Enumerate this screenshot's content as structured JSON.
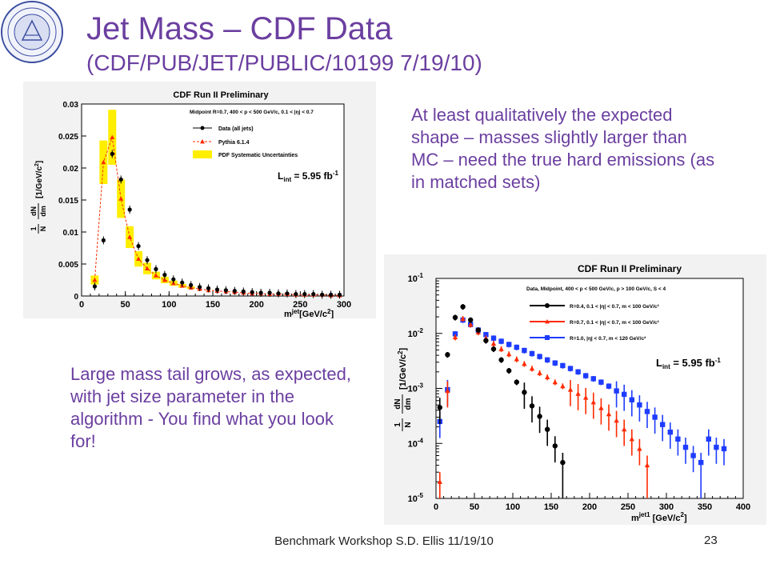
{
  "slide": {
    "title": "Jet Mass – CDF Data",
    "subtitle": "(CDF/PUB/JET/PUBLIC/10199  7/19/10)",
    "note_top": "At least qualitatively the expected shape – masses slightly larger than MC – need the true hard emissions (as in matched sets)",
    "note_bottom": "Large mass tail grows, as expected, with jet size parameter in the algorithm - You find what you look for!",
    "footer": "Benchmark Workshop   S.D. Ellis 11/19/10",
    "page_number": "23"
  },
  "colors": {
    "title": "#6b3fa0",
    "data_black": "#000000",
    "pythia_red": "#ff2a00",
    "systematic_yellow": "#ffee00",
    "r1_blue": "#1e3cff"
  },
  "chart_data": [
    {
      "type": "scatter",
      "title": "CDF Run II Preliminary",
      "xlabel": "m",
      "xlabel_sup": "jet",
      "xlabel_unit": "[GeV/c",
      "xlabel_unit_sup": "2",
      "xlabel_unit_end": "]",
      "ylabel": "[1/GeV/c",
      "ylabel_sup": "2",
      "ylabel_end": "]",
      "xlim": [
        0,
        300
      ],
      "ylim": [
        0,
        0.03
      ],
      "xticks": [
        0,
        50,
        100,
        150,
        200,
        250,
        300
      ],
      "yticks": [
        0,
        0.005,
        0.01,
        0.015,
        0.02,
        0.025,
        0.03
      ],
      "ytick_labels": [
        "0",
        "0.005",
        "0.01",
        "0.015",
        "0.02",
        "0.025",
        "0.03"
      ],
      "legend_header": "Midpoint R=0.7, 400 < p",
      "legend_header_tail": " < 500 GeV/c, 0.1 < |η",
      "legend_header_tail2": "| < 0.7",
      "legend_position": "top-right",
      "luminosity": "L",
      "luminosity_sub": "int",
      "luminosity_value": " = 5.95 fb",
      "luminosity_sup": "-1",
      "series": [
        {
          "name": "Data (all jets)",
          "style": "black-circles",
          "x": [
            15,
            25,
            35,
            45,
            55,
            65,
            75,
            85,
            95,
            105,
            115,
            125,
            135,
            145,
            155,
            165,
            175,
            185,
            195,
            205,
            215,
            225,
            235,
            245,
            255,
            265,
            275,
            285,
            295
          ],
          "y": [
            0.0015,
            0.0087,
            0.0222,
            0.0182,
            0.0135,
            0.0078,
            0.0056,
            0.0042,
            0.0033,
            0.0026,
            0.0021,
            0.0017,
            0.0014,
            0.0012,
            0.001,
            0.0009,
            0.0008,
            0.0007,
            0.0006,
            0.0005,
            0.0005,
            0.0004,
            0.0004,
            0.0003,
            0.0003,
            0.0003,
            0.0002,
            0.0002,
            0.0002
          ]
        },
        {
          "name": "Pythia 6.1.4",
          "style": "red-triangles-dashed",
          "x": [
            15,
            25,
            35,
            45,
            55,
            65,
            75,
            85,
            95,
            105,
            115,
            125,
            135,
            145,
            155,
            165,
            175,
            185,
            195,
            205,
            215,
            225,
            235,
            245,
            255,
            265,
            275,
            285,
            295
          ],
          "y": [
            0.0025,
            0.0209,
            0.0248,
            0.0152,
            0.0092,
            0.0058,
            0.0043,
            0.0032,
            0.0025,
            0.002,
            0.0016,
            0.0013,
            0.0011,
            0.0009,
            0.0008,
            0.0007,
            0.0006,
            0.0005,
            0.0004,
            0.0004,
            0.0003,
            0.0003,
            0.0003,
            0.0002,
            0.0002,
            0.0002,
            0.0002,
            0.0001,
            0.0001
          ]
        },
        {
          "name": "PDF Systematic Uncertainties",
          "style": "yellow-bands",
          "x": [
            15,
            25,
            35,
            45,
            55,
            65,
            75,
            85,
            95,
            105,
            115,
            125
          ],
          "low": [
            0.0018,
            0.0175,
            0.0205,
            0.0122,
            0.0075,
            0.0046,
            0.0034,
            0.0026,
            0.002,
            0.0016,
            0.0013,
            0.0011
          ],
          "high": [
            0.0032,
            0.0243,
            0.0291,
            0.0182,
            0.0109,
            0.007,
            0.0052,
            0.0038,
            0.003,
            0.0024,
            0.0019,
            0.0015
          ]
        }
      ]
    },
    {
      "type": "scatter",
      "title": "CDF Run II Preliminary",
      "xlabel": "m",
      "xlabel_sup": "jet1",
      "xlabel_unit": " [GeV/c",
      "xlabel_unit_sup": "2",
      "xlabel_unit_end": "]",
      "ylabel": "[1/GeV/c",
      "ylabel_sup": "2",
      "ylabel_end": "]",
      "yscale": "log",
      "xlim": [
        0,
        400
      ],
      "ylim": [
        1e-05,
        0.1
      ],
      "xticks": [
        0,
        50,
        100,
        150,
        200,
        250,
        300,
        350,
        400
      ],
      "ytick_exponents": [
        "-5",
        "-4",
        "-3",
        "-2",
        "-1"
      ],
      "ytick_base": "10",
      "legend_header": "Data, Midpoint, 400 < p",
      "legend_header_tail": " < 500 GeV/c, p",
      "legend_header_tail2": " > 100 GeV/c, S",
      "legend_header_tail3": " < 4",
      "legend_position": "top-right",
      "luminosity": "L",
      "luminosity_sub": "int",
      "luminosity_value": " = 5.95 fb",
      "luminosity_sup": "-1",
      "series": [
        {
          "name": "R=0.4, 0.1 < |η| < 0.7, m < 100 GeV/c²",
          "style": "black-circles",
          "x": [
            5,
            15,
            25,
            35,
            45,
            55,
            65,
            75,
            85,
            95,
            105,
            115,
            125,
            135,
            145,
            155,
            165
          ],
          "y": [
            0.00045,
            0.0041,
            0.0195,
            0.0305,
            0.0175,
            0.0115,
            0.0074,
            0.0052,
            0.0033,
            0.0021,
            0.0013,
            0.00085,
            0.00048,
            0.00031,
            0.00018,
            9e-05,
            4.5e-05
          ]
        },
        {
          "name": "R=0.7, 0.1 < |η| < 0.7, m < 100 GeV/c²",
          "style": "red-triangles",
          "x": [
            5,
            15,
            25,
            35,
            45,
            55,
            65,
            75,
            85,
            95,
            105,
            115,
            125,
            135,
            145,
            155,
            165,
            175,
            185,
            195,
            205,
            215,
            225,
            235,
            245,
            255,
            265,
            275
          ],
          "y": [
            2e-05,
            0.0009,
            0.0085,
            0.0185,
            0.0145,
            0.0105,
            0.0082,
            0.0065,
            0.0052,
            0.0042,
            0.0034,
            0.0028,
            0.0023,
            0.0019,
            0.0016,
            0.0013,
            0.0011,
            0.00095,
            0.0008,
            0.00068,
            0.00056,
            0.00044,
            0.00034,
            0.00026,
            0.00018,
            0.00012,
            8e-05,
            4e-05
          ]
        },
        {
          "name": "R=1.0, |η| < 0.7, m < 120 GeV/c²",
          "style": "blue-squares",
          "x": [
            5,
            15,
            25,
            35,
            45,
            55,
            65,
            75,
            85,
            95,
            105,
            115,
            125,
            135,
            145,
            155,
            165,
            175,
            185,
            195,
            205,
            215,
            225,
            235,
            245,
            255,
            265,
            275,
            285,
            295,
            305,
            315,
            325,
            335,
            345,
            355,
            365,
            375
          ],
          "y": [
            0.00025,
            0.00095,
            0.0098,
            0.0175,
            0.0145,
            0.0115,
            0.0095,
            0.0082,
            0.0072,
            0.0063,
            0.0056,
            0.0049,
            0.0043,
            0.0038,
            0.0033,
            0.0029,
            0.0026,
            0.0023,
            0.002,
            0.0017,
            0.0015,
            0.0013,
            0.0011,
            0.0009,
            0.00078,
            0.00062,
            0.0005,
            0.00038,
            0.0003,
            0.00022,
            0.00016,
            0.00012,
            8.5e-05,
            6e-05,
            4.5e-05,
            0.00012,
            8.5e-05,
            8e-05
          ]
        }
      ]
    }
  ]
}
